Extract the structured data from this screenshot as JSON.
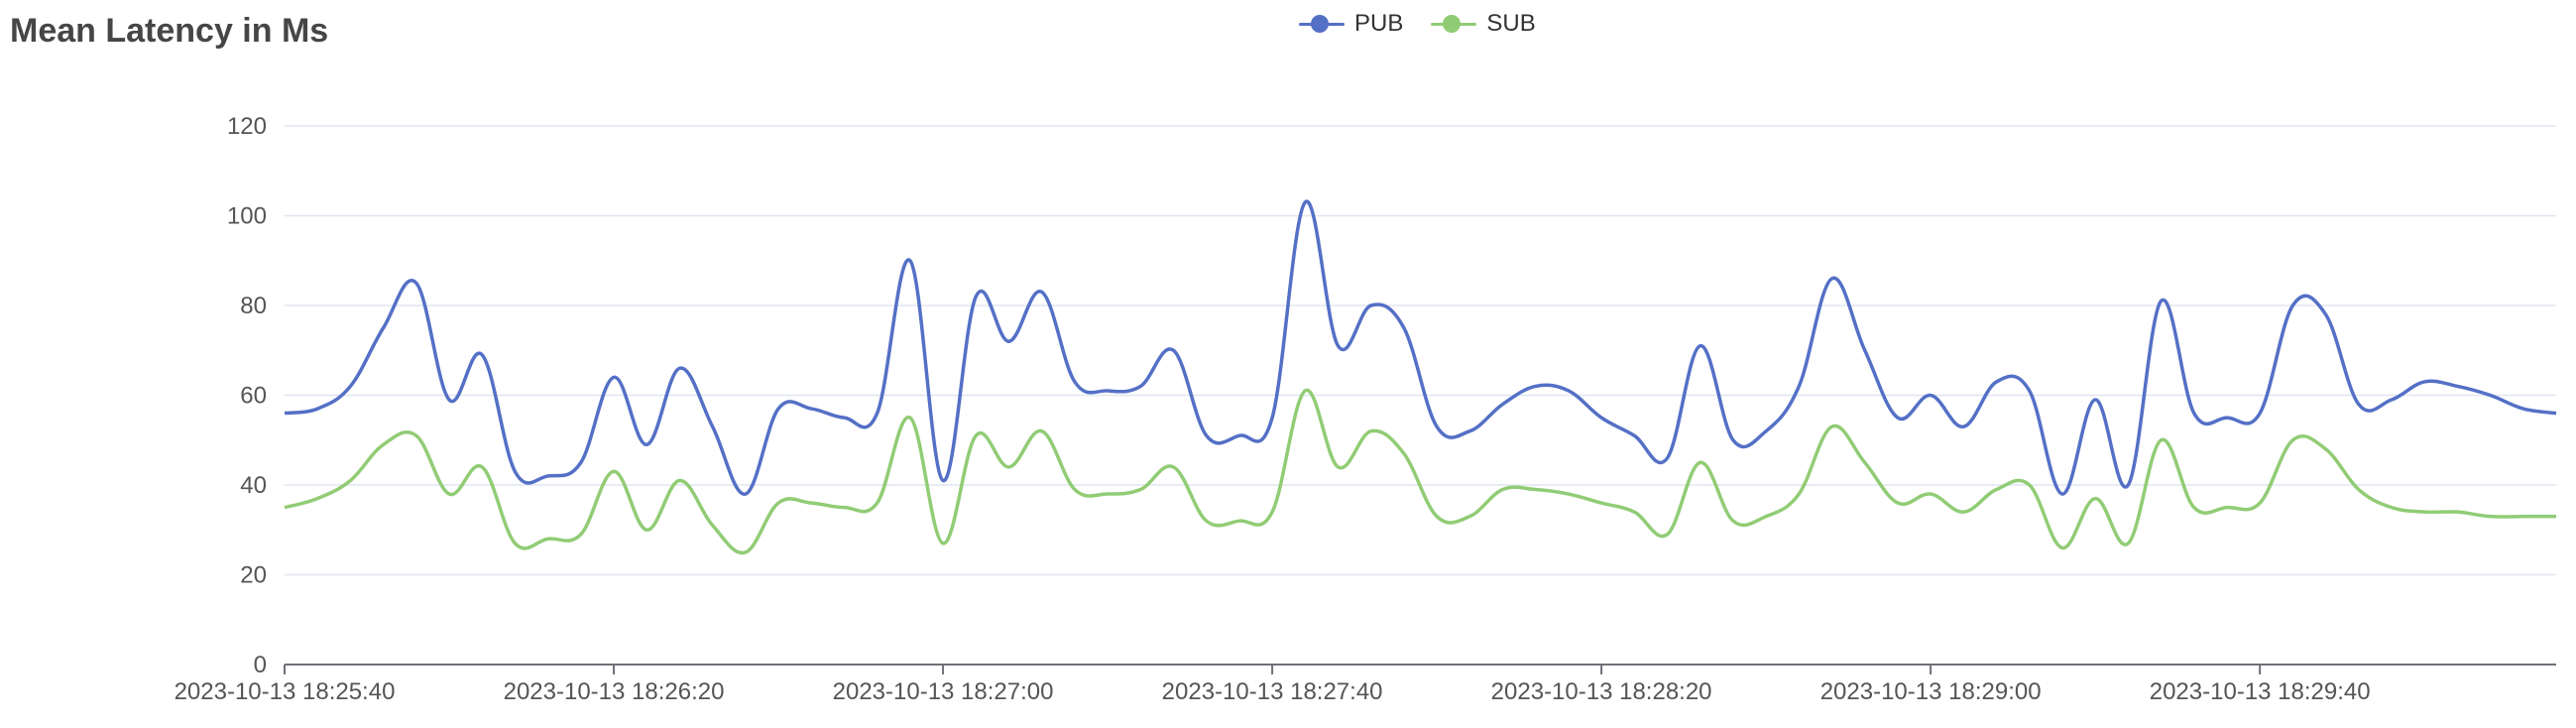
{
  "title": "Mean Latency in Ms",
  "legend": [
    {
      "name": "PUB",
      "color": "#5470c6"
    },
    {
      "name": "SUB",
      "color": "#91cc75"
    }
  ],
  "chart_data": {
    "type": "line",
    "title": "Mean Latency in Ms",
    "xlabel": "",
    "ylabel": "",
    "ylim": [
      0,
      120
    ],
    "yticks": [
      0,
      20,
      40,
      60,
      80,
      100,
      120
    ],
    "grid": true,
    "legend_position": "top-center",
    "x_tick_labels": [
      "2023-10-13 18:25:40",
      "2023-10-13 18:26:20",
      "2023-10-13 18:27:00",
      "2023-10-13 18:27:40",
      "2023-10-13 18:28:20",
      "2023-10-13 18:29:00",
      "2023-10-13 18:29:40"
    ],
    "x_index": [
      0,
      2,
      4,
      6,
      8,
      10,
      12,
      14,
      16,
      18,
      20,
      22,
      24,
      26,
      28,
      30,
      32,
      34,
      36,
      38,
      40,
      42,
      44,
      46,
      48,
      50,
      52,
      54,
      56,
      58,
      60,
      62,
      64,
      66,
      68,
      70,
      72,
      74,
      76,
      78,
      80,
      82,
      84,
      86,
      88,
      90,
      92,
      94,
      96,
      98,
      100,
      102,
      104,
      106,
      108,
      110,
      112,
      114,
      116,
      118,
      120,
      122,
      124,
      126,
      128,
      130,
      132,
      134,
      136,
      138
    ],
    "series": [
      {
        "name": "PUB",
        "color": "#5470c6",
        "values": [
          56,
          57,
          62,
          75,
          85,
          59,
          69,
          43,
          42,
          45,
          64,
          49,
          66,
          53,
          38,
          57,
          57,
          55,
          56,
          90,
          41,
          82,
          72,
          83,
          63,
          61,
          62,
          70,
          51,
          51,
          55,
          103,
          71,
          80,
          75,
          53,
          52,
          58,
          62,
          61,
          55,
          51,
          46,
          71,
          50,
          52,
          62,
          86,
          70,
          55,
          60,
          53,
          63,
          61,
          38,
          59,
          40,
          81,
          56,
          55,
          56,
          80,
          78,
          58,
          59,
          63,
          62,
          60,
          57,
          56
        ]
      },
      {
        "name": "SUB",
        "color": "#91cc75",
        "values": [
          35,
          37,
          41,
          49,
          51,
          38,
          44,
          27,
          28,
          29,
          43,
          30,
          41,
          31,
          25,
          36,
          36,
          35,
          36,
          55,
          27,
          51,
          44,
          52,
          39,
          38,
          39,
          44,
          32,
          32,
          34,
          61,
          44,
          52,
          47,
          33,
          33,
          39,
          39,
          38,
          36,
          34,
          29,
          45,
          32,
          33,
          38,
          53,
          45,
          36,
          38,
          34,
          39,
          40,
          26,
          37,
          27,
          50,
          35,
          35,
          36,
          50,
          48,
          39,
          35,
          34,
          34,
          33,
          33,
          33
        ]
      }
    ]
  }
}
